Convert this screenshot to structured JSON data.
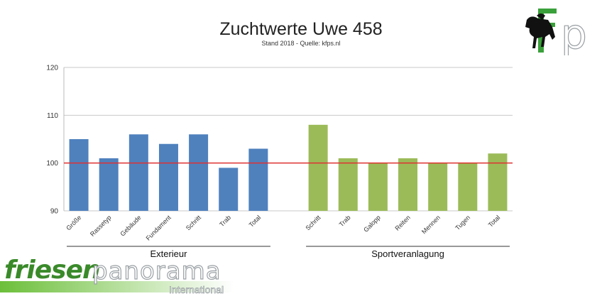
{
  "chart_data": {
    "type": "bar",
    "title": "Zuchtwerte Uwe 458",
    "subtitle": "Stand 2018 - Quelle: kfps.nl",
    "ylim": [
      90,
      120
    ],
    "yticks": [
      90,
      100,
      110,
      120
    ],
    "reference_line": 100,
    "grid": true,
    "groups": [
      {
        "name": "Exterieur",
        "color": "#4f81bd",
        "categories": [
          "Größe",
          "Rassetyp",
          "Gebäude",
          "Fundament",
          "Schritt",
          "Trab",
          "Total"
        ],
        "values": [
          105,
          101,
          106,
          104,
          106,
          99,
          103
        ]
      },
      {
        "name": "Sportveranlagung",
        "color": "#9bbb59",
        "categories": [
          "Schritt",
          "Trab",
          "Galopp",
          "Reiten",
          "Mennen",
          "Tugen",
          "Total"
        ],
        "values": [
          108,
          101,
          100,
          101,
          100,
          100,
          102
        ]
      }
    ],
    "reference_color": "#e03030"
  },
  "logos": {
    "kfp": "kfp",
    "friesenpanorama": {
      "part1": "friesen",
      "part2": "panorama",
      "part3": "International"
    }
  }
}
